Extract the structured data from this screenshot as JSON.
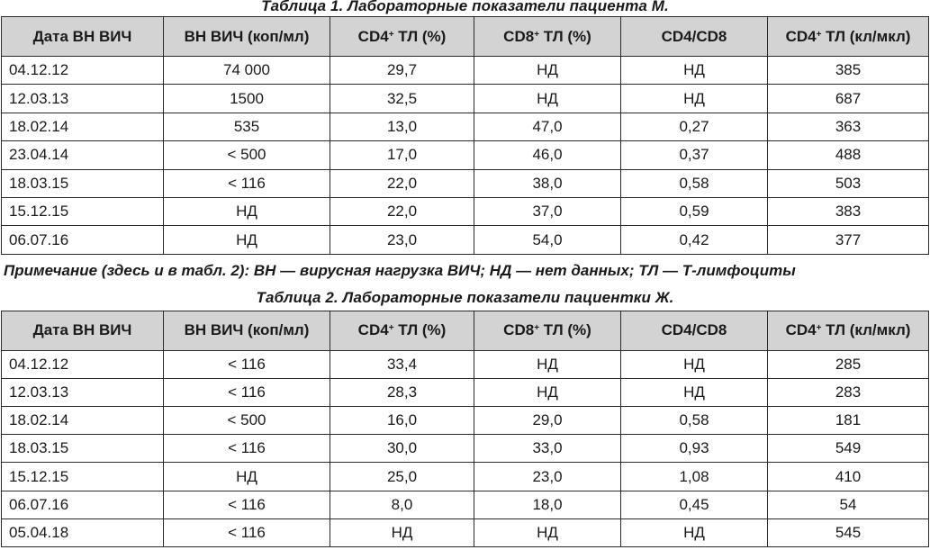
{
  "table1": {
    "caption": "Таблица 1. Лабораторные показатели пациента М.",
    "headers": [
      {
        "text": "Дата ВН ВИЧ",
        "sup": "",
        "tail": ""
      },
      {
        "text": "ВН ВИЧ (коп/мл)",
        "sup": "",
        "tail": ""
      },
      {
        "text": "CD4",
        "sup": "+",
        "tail": " ТЛ (%)"
      },
      {
        "text": "CD8",
        "sup": "+",
        "tail": " ТЛ (%)"
      },
      {
        "text": "CD4/CD8",
        "sup": "",
        "tail": ""
      },
      {
        "text": "CD4",
        "sup": "+",
        "tail": " ТЛ (кл/мкл)"
      }
    ],
    "rows": [
      [
        "04.12.12",
        "74 000",
        "29,7",
        "НД",
        "НД",
        "385"
      ],
      [
        "12.03.13",
        "1500",
        "32,5",
        "НД",
        "НД",
        "687"
      ],
      [
        "18.02.14",
        "535",
        "13,0",
        "47,0",
        "0,27",
        "363"
      ],
      [
        "23.04.14",
        "< 500",
        "17,0",
        "46,0",
        "0,37",
        "488"
      ],
      [
        "18.03.15",
        "< 116",
        "22,0",
        "38,0",
        "0,58",
        "503"
      ],
      [
        "15.12.15",
        "НД",
        "22,0",
        "37,0",
        "0,59",
        "383"
      ],
      [
        "06.07.16",
        "НД",
        "23,0",
        "54,0",
        "0,42",
        "377"
      ]
    ]
  },
  "note": "Примечание (здесь и в табл. 2): ВН — вирусная нагрузка ВИЧ; НД — нет данных; ТЛ — Т-лимфоциты",
  "table2": {
    "caption": "Таблица 2. Лабораторные показатели пациентки Ж.",
    "headers": [
      {
        "text": "Дата ВН ВИЧ",
        "sup": "",
        "tail": ""
      },
      {
        "text": "ВН ВИЧ (коп/мл)",
        "sup": "",
        "tail": ""
      },
      {
        "text": "CD4",
        "sup": "+",
        "tail": " ТЛ (%)"
      },
      {
        "text": "CD8",
        "sup": "+",
        "tail": " ТЛ (%)"
      },
      {
        "text": "CD4/CD8",
        "sup": "",
        "tail": ""
      },
      {
        "text": "CD4",
        "sup": "+",
        "tail": " ТЛ (кл/мкл)"
      }
    ],
    "rows": [
      [
        "04.12.12",
        "< 116",
        "33,4",
        "НД",
        "НД",
        "285"
      ],
      [
        "12.03.13",
        "< 116",
        "28,3",
        "НД",
        "НД",
        "283"
      ],
      [
        "18.02.14",
        "< 500",
        "16,0",
        "29,0",
        "0,58",
        "181"
      ],
      [
        "18.03.15",
        "< 116",
        "30,0",
        "33,0",
        "0,93",
        "549"
      ],
      [
        "15.12.15",
        "НД",
        "25,0",
        "23,0",
        "1,08",
        "410"
      ],
      [
        "06.07.16",
        "< 116",
        "8,0",
        "18,0",
        "0,45",
        "54"
      ],
      [
        "05.04.18",
        "< 116",
        "НД",
        "НД",
        "НД",
        "545"
      ]
    ]
  }
}
